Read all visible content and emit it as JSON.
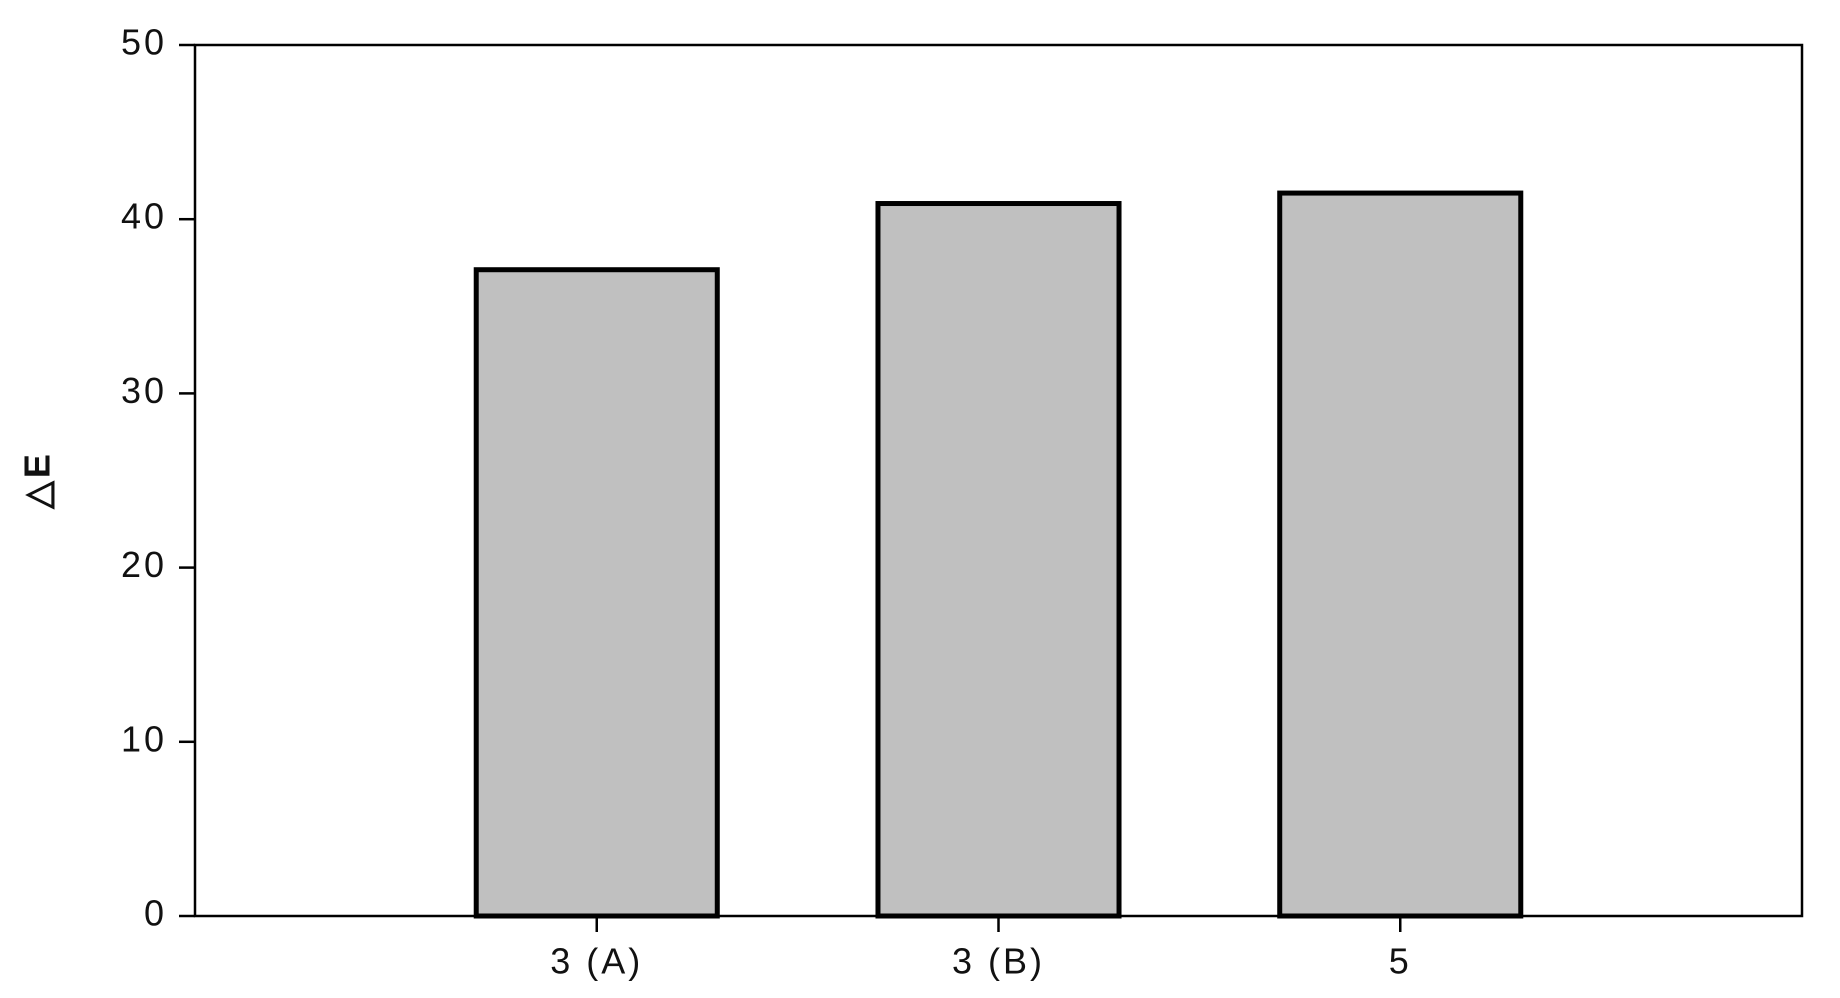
{
  "chart_data": {
    "type": "bar",
    "y_label": "△E",
    "categories": [
      "3 (A)",
      "3 (B)",
      "5"
    ],
    "values": [
      37.1,
      40.9,
      41.5
    ],
    "color": "#c0c0c0",
    "ylim": [
      0,
      50
    ],
    "yticks": [
      0,
      10,
      20,
      30,
      40,
      50
    ],
    "grid": false
  }
}
